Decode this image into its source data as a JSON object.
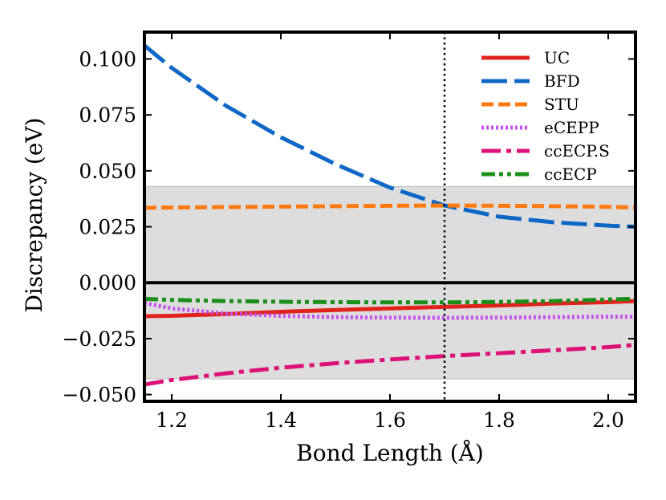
{
  "chart_data": {
    "type": "line",
    "xlabel": "Bond Length (Å)",
    "ylabel": "Discrepancy (eV)",
    "xlim": [
      1.15,
      2.05
    ],
    "ylim": [
      -0.053,
      0.112
    ],
    "xticks": [
      1.2,
      1.4,
      1.6,
      1.8,
      2.0
    ],
    "xtick_labels": [
      "1.2",
      "1.4",
      "1.6",
      "1.8",
      "2.0"
    ],
    "yticks": [
      -0.05,
      -0.025,
      0.0,
      0.025,
      0.05,
      0.075,
      0.1
    ],
    "ytick_labels": [
      "−0.050",
      "−0.025",
      "0.000",
      "0.025",
      "0.050",
      "0.075",
      "0.100"
    ],
    "shaded_band": [
      -0.043,
      0.043
    ],
    "zero_line": 0.0,
    "vertical_line": 1.7,
    "legend_position": "top-right",
    "x": [
      1.15,
      1.2,
      1.3,
      1.4,
      1.5,
      1.6,
      1.7,
      1.8,
      1.9,
      2.0,
      2.05
    ],
    "series": [
      {
        "name": "UC",
        "color": "#e0241d",
        "dash": "solid",
        "values": [
          -0.015,
          -0.0148,
          -0.014,
          -0.013,
          -0.0122,
          -0.0115,
          -0.0108,
          -0.0102,
          -0.0093,
          -0.0087,
          -0.0082
        ]
      },
      {
        "name": "BFD",
        "color": "#0f67c6",
        "dash": "longdash",
        "values": [
          0.106,
          0.096,
          0.079,
          0.065,
          0.053,
          0.0425,
          0.0345,
          0.0295,
          0.027,
          0.0255,
          0.025
        ]
      },
      {
        "name": "STU",
        "color": "#ff7a10",
        "dash": "dashed",
        "values": [
          0.0335,
          0.0336,
          0.0338,
          0.034,
          0.0342,
          0.0344,
          0.0345,
          0.0344,
          0.0342,
          0.0339,
          0.0336
        ]
      },
      {
        "name": "eCEPP",
        "color": "#c84ff0",
        "dash": "dotted",
        "values": [
          -0.009,
          -0.0115,
          -0.0138,
          -0.0148,
          -0.0154,
          -0.0156,
          -0.0157,
          -0.0156,
          -0.0154,
          -0.0152,
          -0.0152
        ]
      },
      {
        "name": "ccECP.S",
        "color": "#dd1177",
        "dash": "dashdot",
        "values": [
          -0.0455,
          -0.0435,
          -0.0405,
          -0.038,
          -0.036,
          -0.0343,
          -0.0328,
          -0.0315,
          -0.0302,
          -0.0288,
          -0.0278
        ]
      },
      {
        "name": "ccECP",
        "color": "#1a8f1a",
        "dash": "dashdotdot",
        "values": [
          -0.0072,
          -0.0077,
          -0.0082,
          -0.0085,
          -0.0087,
          -0.0088,
          -0.0088,
          -0.0086,
          -0.0082,
          -0.0075,
          -0.0072
        ]
      }
    ]
  }
}
